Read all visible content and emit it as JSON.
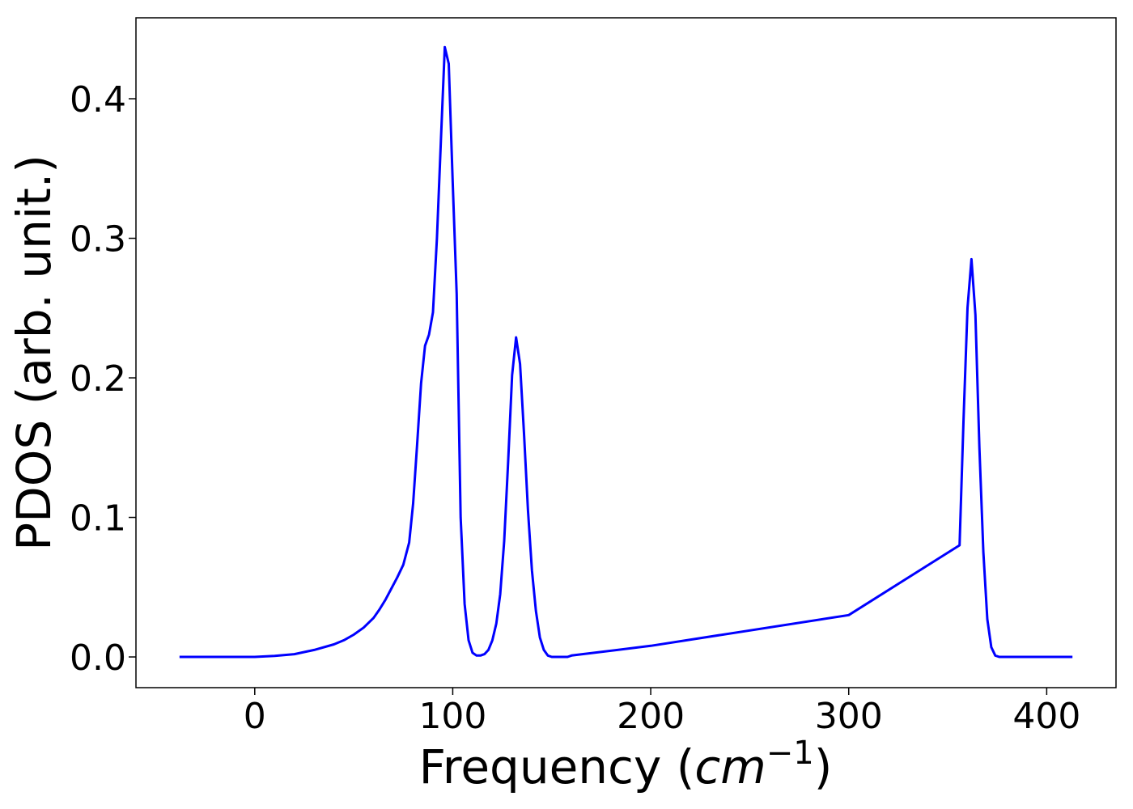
{
  "chart_data": {
    "type": "line",
    "title": "",
    "xlabel": "Frequency (cm−1)",
    "ylabel": "PDOS (arb. unit.)",
    "xlim": [
      -60,
      435
    ],
    "ylim": [
      -0.022,
      0.458
    ],
    "xticks": [
      0,
      100,
      200,
      300,
      400
    ],
    "xtick_labels": [
      "0",
      "100",
      "200",
      "300",
      "400"
    ],
    "yticks": [
      0.0,
      0.1,
      0.2,
      0.3,
      0.4
    ],
    "ytick_labels": [
      "0.0",
      "0.1",
      "0.2",
      "0.3",
      "0.4"
    ],
    "grid": false,
    "legend": "none",
    "series": [
      {
        "color": "#0000ff",
        "x": [
          -38,
          0,
          10,
          20,
          30,
          40,
          45,
          50,
          55,
          60,
          63,
          66,
          69,
          72,
          75,
          78,
          80,
          82,
          84,
          86,
          88,
          90,
          92,
          94,
          96,
          98,
          100,
          102,
          104,
          106,
          108,
          110,
          112,
          114,
          116,
          118,
          120,
          122,
          124,
          126,
          128,
          130,
          132,
          134,
          136,
          138,
          140,
          142,
          144,
          146,
          148,
          150,
          152,
          154,
          156,
          158,
          160,
          200,
          300,
          356,
          358,
          360,
          362,
          364,
          366,
          368,
          370,
          372,
          374,
          376,
          378,
          380,
          382,
          384,
          386,
          388,
          390,
          400,
          413
        ],
        "y": [
          0,
          0,
          0.0008,
          0.002,
          0.005,
          0.009,
          0.012,
          0.016,
          0.021,
          0.028,
          0.034,
          0.041,
          0.049,
          0.057,
          0.066,
          0.082,
          0.11,
          0.152,
          0.196,
          0.223,
          0.231,
          0.247,
          0.3,
          0.37,
          0.437,
          0.425,
          0.34,
          0.26,
          0.1,
          0.038,
          0.012,
          0.003,
          0.001,
          0.001,
          0.002,
          0.005,
          0.012,
          0.024,
          0.045,
          0.083,
          0.14,
          0.202,
          0.229,
          0.21,
          0.16,
          0.105,
          0.062,
          0.033,
          0.014,
          0.005,
          0.001,
          0,
          0,
          0,
          0,
          0,
          0.001,
          0.008,
          0.03,
          0.08,
          0.17,
          0.25,
          0.285,
          0.245,
          0.15,
          0.075,
          0.027,
          0.007,
          0.001,
          0,
          0,
          0,
          0,
          0,
          0,
          0,
          0,
          0,
          0
        ]
      }
    ]
  }
}
